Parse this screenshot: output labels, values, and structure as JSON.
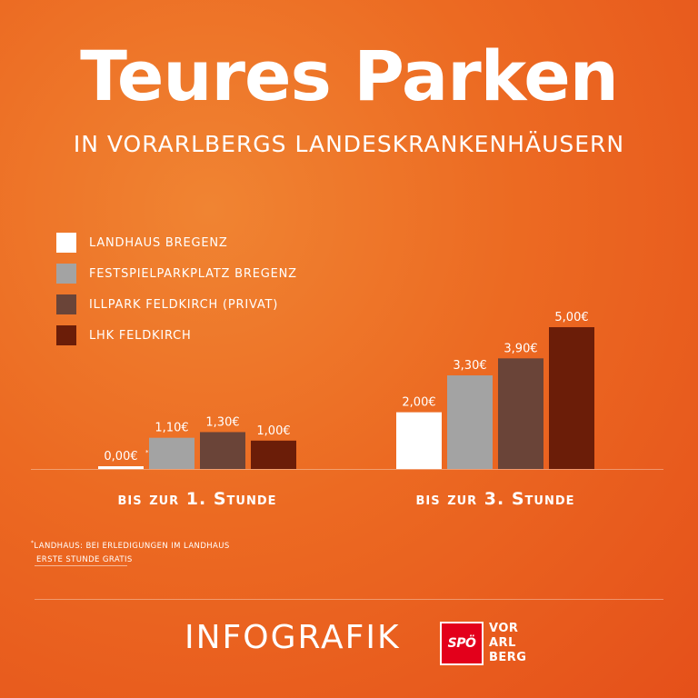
{
  "header": {
    "title": "Teures Parken",
    "subtitle": "IN VORARLBERGS LANDESKRANKENHÄUSERN"
  },
  "chart_data": {
    "type": "bar",
    "title": "Teures Parken",
    "subtitle": "IN VORARLBERGS LANDESKRANKENHÄUSERN",
    "categories": [
      "bis zur 1. Stunde",
      "bis zur 3. Stunde"
    ],
    "series": [
      {
        "name": "LANDHAUS BREGENZ",
        "color": "#ffffff",
        "values": [
          0.0,
          2.0
        ],
        "labels": [
          "0,00€",
          "2,00€"
        ]
      },
      {
        "name": "FESTSPIELPARKPLATZ BREGENZ",
        "color": "#a3a3a3",
        "values": [
          1.1,
          3.3
        ],
        "labels": [
          "1,10€",
          "3,30€"
        ]
      },
      {
        "name": "ILLPARK FELDKIRCH (PRIVAT)",
        "color": "#6a4438",
        "values": [
          1.3,
          3.9
        ],
        "labels": [
          "1,30€",
          "3,90€"
        ]
      },
      {
        "name": "LHK FELDKIRCH",
        "color": "#6b1d08",
        "values": [
          1.0,
          5.0
        ],
        "labels": [
          "1,00€",
          "5,00€"
        ]
      }
    ],
    "footnote_marker": "*",
    "ylim": [
      0,
      5
    ],
    "grid": false,
    "legend": "top-left"
  },
  "footnote": {
    "marker": "*",
    "line1": "LANDHAUS: BEI ERLEDIGUNGEN IM LANDHAUS",
    "line2": "ERSTE STUNDE GRATIS"
  },
  "footer": {
    "label": "INFOGRAFIK",
    "logo": "SPÖ",
    "logo_text": [
      "VOR",
      "ARL",
      "BERG"
    ]
  }
}
